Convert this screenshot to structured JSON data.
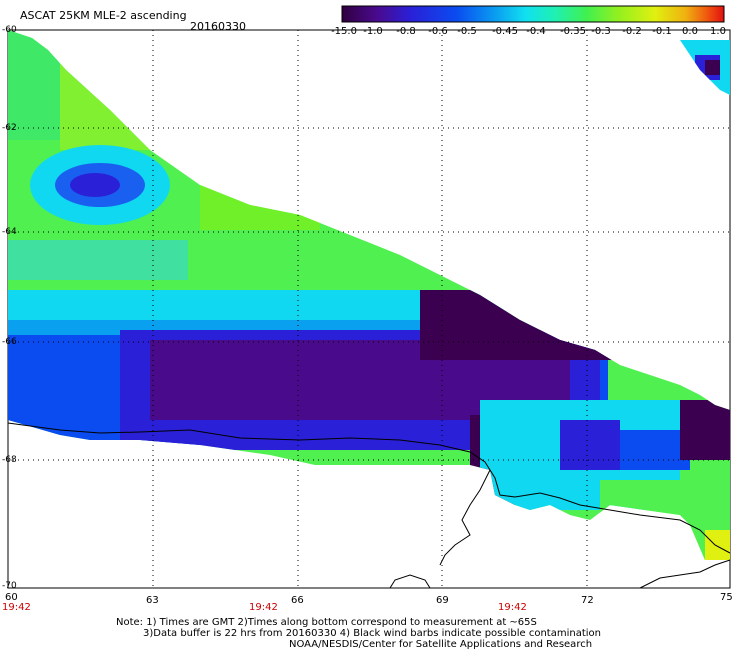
{
  "header": {
    "product": "ASCAT 25KM MLE-2 ascending",
    "date": "20160330"
  },
  "colorbar": {
    "ticks": [
      "-15.0",
      "-1.0",
      "-0.8",
      "-0.6",
      "-0.5",
      "-0.45",
      "-0.4",
      "-0.35",
      "-0.3",
      "-0.2",
      "-0.1",
      "0.0",
      "1.0"
    ],
    "colors": [
      "#3b0050",
      "#4a0a8c",
      "#2a20d8",
      "#0a4cf0",
      "#0a9cf0",
      "#10e0f0",
      "#20f0b0",
      "#40f050",
      "#90f020",
      "#e0f010",
      "#f0b010",
      "#f05010",
      "#e01010"
    ]
  },
  "map": {
    "lat_labels": [
      "-60",
      "-62",
      "-64",
      "-66",
      "-68",
      "-70"
    ],
    "lon_labels": [
      "60",
      "63",
      "66",
      "69",
      "72",
      "75"
    ],
    "time_labels": [
      "19:42",
      "19:42",
      "19:42"
    ]
  },
  "notes": {
    "line1": "Note: 1) Times are GMT 2)Times along bottom correspond to measurement at ~65S",
    "line2": "3)Data buffer is 22 hrs from 20160330 4) Black wind barbs indicate possible contamination",
    "line3": "NOAA/NESDIS/Center for Satellite Applications and Research"
  },
  "colors": {
    "time_label": "#cc0000"
  }
}
